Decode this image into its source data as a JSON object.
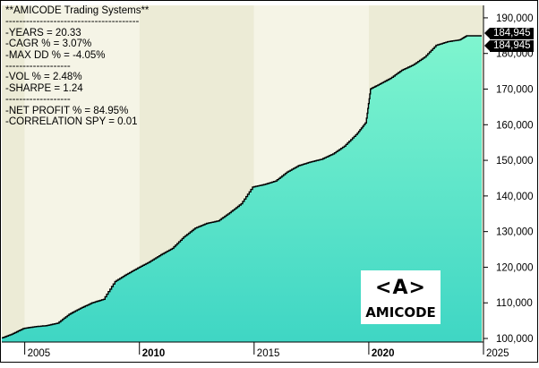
{
  "chart_data": {
    "type": "area",
    "x": [
      2004.0,
      2004.5,
      2005.0,
      2005.5,
      2006.0,
      2006.5,
      2007.0,
      2007.5,
      2008.0,
      2008.5,
      2009.0,
      2009.5,
      2010.0,
      2010.5,
      2011.0,
      2011.5,
      2012.0,
      2012.5,
      2013.0,
      2013.5,
      2014.0,
      2014.5,
      2015.0,
      2015.5,
      2016.0,
      2016.5,
      2017.0,
      2017.5,
      2018.0,
      2018.5,
      2019.0,
      2019.5,
      2019.9,
      2020.1,
      2020.5,
      2021.0,
      2021.5,
      2022.0,
      2022.5,
      2023.0,
      2023.5,
      2024.0,
      2024.3
    ],
    "y": [
      100000,
      101200,
      102800,
      103300,
      103600,
      104300,
      106800,
      108500,
      110000,
      111000,
      116000,
      118000,
      119800,
      121500,
      123500,
      125300,
      128500,
      131000,
      132300,
      133000,
      135300,
      137800,
      142500,
      143200,
      144200,
      146700,
      148500,
      149500,
      150300,
      151800,
      154000,
      157200,
      160500,
      170000,
      171300,
      173000,
      175300,
      176800,
      179000,
      182300,
      183300,
      183800,
      184945
    ],
    "ylim": [
      99000,
      193500
    ],
    "xlim": [
      2004.0,
      2025.0
    ],
    "y_ticks": [
      "100,000",
      "110,000",
      "120,000",
      "130,000",
      "140,000",
      "150,000",
      "160,000",
      "170,000",
      "180,000",
      "190,000"
    ],
    "y_tick_values": [
      100000,
      110000,
      120000,
      130000,
      140000,
      150000,
      160000,
      170000,
      180000,
      190000
    ],
    "x_ticks": [
      "2005",
      "2010",
      "2015",
      "2020",
      "2025"
    ],
    "x_tick_values": [
      2005,
      2010,
      2015,
      2020,
      2025
    ],
    "x_ticks_bold": [
      false,
      true,
      false,
      true,
      false
    ],
    "last_value_labels": [
      "184,945",
      "184,945"
    ],
    "grid": false,
    "colors": {
      "area_top": "#7ff5cf",
      "area_bottom": "#3fd6c4",
      "band_light": "#f5f4e6",
      "band_dark": "#ecebd6",
      "drawdown": "#000000",
      "axis": "#000000",
      "tag_bg": "#000000",
      "tag_text": "#ffffff"
    }
  },
  "stats": [
    "**AMICODE Trading Systems**",
    "---------------------------------------",
    "-YEARS = 20.33",
    "-CAGR % = 3.07%",
    "-MAX DD % = -4.05%",
    "-------------------",
    "-VOL % = 2.48%",
    "-SHARPE = 1.24",
    "-------------------",
    "-NET PROFIT % = 84.95%",
    "-CORRELATION SPY = 0.01"
  ],
  "logo": {
    "mark": "<A>",
    "word": "AMICODE"
  }
}
